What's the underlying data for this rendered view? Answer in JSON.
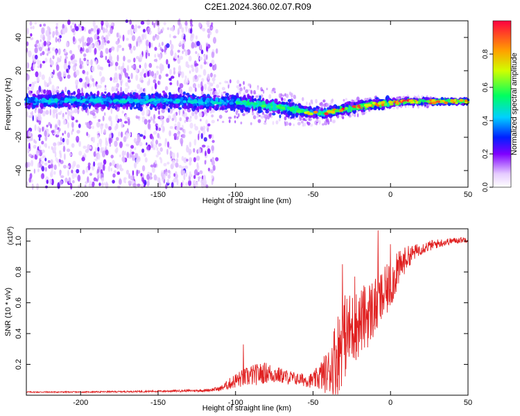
{
  "title": "C2E1.2024.360.02.07.R09",
  "colors": {
    "snr_line": "#e02020",
    "axis": "#000000",
    "background": "#ffffff"
  },
  "chart_data": [
    {
      "type": "heatmap",
      "xlabel": "Height of straight line (km)",
      "ylabel": "Frequency (Hz)",
      "xlim": [
        -235,
        50
      ],
      "ylim": [
        -50,
        50
      ],
      "x_ticks": [
        -200,
        -150,
        -100,
        -50,
        0,
        50
      ],
      "y_ticks": [
        -40,
        -20,
        0,
        20,
        40
      ],
      "colorbar": {
        "label": "Normalized spectral amplitude",
        "range": [
          0,
          1
        ],
        "ticks": [
          0.0,
          0.2,
          0.4,
          0.6,
          0.8
        ],
        "colormap": "rainbow (white → purple → blue → cyan → green → yellow → red)"
      },
      "description_of_signal": {
        "center_frequency_track": [
          {
            "x": -230,
            "f": 2.0
          },
          {
            "x": -150,
            "f": 2.0
          },
          {
            "x": -100,
            "f": 1.0
          },
          {
            "x": -70,
            "f": -2.0
          },
          {
            "x": -50,
            "f": -5.5
          },
          {
            "x": -40,
            "f": -5.0
          },
          {
            "x": -30,
            "f": -3.0
          },
          {
            "x": -20,
            "f": -1.5
          },
          {
            "x": -10,
            "f": 0.0
          },
          {
            "x": 0,
            "f": 0.5
          },
          {
            "x": 10,
            "f": 1.5
          },
          {
            "x": 50,
            "f": 1.5
          }
        ],
        "scattered_noise_extent_x": [
          -235,
          -112
        ]
      }
    },
    {
      "type": "line",
      "xlabel": "Height of straight line (km)",
      "ylabel": "SNR (10 * v/v)",
      "y_multiplier": "(x10^4)",
      "xlim": [
        -235,
        50
      ],
      "ylim": [
        0,
        1.08
      ],
      "x_ticks": [
        -200,
        -150,
        -100,
        -50,
        0,
        50
      ],
      "y_ticks": [
        0.2,
        0.4,
        0.6,
        0.8,
        1.0
      ],
      "series": [
        {
          "envelope_x": [
            -235,
            -200,
            -150,
            -120,
            -110,
            -100,
            -90,
            -80,
            -70,
            -60,
            -50,
            -40,
            -35,
            -30,
            -25,
            -20,
            -15,
            -10,
            -5,
            0,
            5,
            10,
            15,
            20,
            30,
            40,
            50
          ],
          "envelope_y": [
            0.02,
            0.02,
            0.025,
            0.03,
            0.04,
            0.09,
            0.12,
            0.14,
            0.12,
            0.1,
            0.09,
            0.14,
            0.22,
            0.35,
            0.4,
            0.45,
            0.5,
            0.55,
            0.62,
            0.7,
            0.8,
            0.88,
            0.92,
            0.95,
            0.98,
            1.0,
            1.01
          ],
          "noise_amplitude": [
            0.004,
            0.004,
            0.006,
            0.008,
            0.015,
            0.05,
            0.07,
            0.07,
            0.05,
            0.04,
            0.05,
            0.15,
            0.28,
            0.28,
            0.25,
            0.22,
            0.22,
            0.2,
            0.18,
            0.16,
            0.12,
            0.08,
            0.05,
            0.04,
            0.03,
            0.02,
            0.02
          ],
          "peaks": [
            {
              "x": -95,
              "y": 0.33
            },
            {
              "x": -31,
              "y": 0.85
            },
            {
              "x": -23,
              "y": 0.77
            },
            {
              "x": -8,
              "y": 1.07
            },
            {
              "x": 0,
              "y": 0.98
            },
            {
              "x": 4,
              "y": 0.92
            }
          ]
        }
      ]
    }
  ]
}
